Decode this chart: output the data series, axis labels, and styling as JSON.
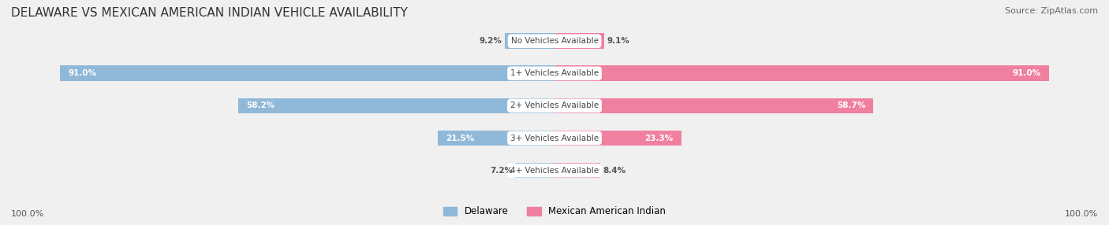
{
  "title": "DELAWARE VS MEXICAN AMERICAN INDIAN VEHICLE AVAILABILITY",
  "source": "Source: ZipAtlas.com",
  "categories": [
    "No Vehicles Available",
    "1+ Vehicles Available",
    "2+ Vehicles Available",
    "3+ Vehicles Available",
    "4+ Vehicles Available"
  ],
  "delaware_values": [
    9.2,
    91.0,
    58.2,
    21.5,
    7.2
  ],
  "mexican_values": [
    9.1,
    91.0,
    58.7,
    23.3,
    8.4
  ],
  "delaware_color": "#90b8d8",
  "mexican_color": "#f080a0",
  "delaware_light": "#b8d4e8",
  "mexican_light": "#f8c0d0",
  "background_color": "#f0f0f0",
  "bar_bg_color": "#e8e8e8",
  "max_value": 100.0,
  "bar_height": 0.55,
  "legend_labels": [
    "Delaware",
    "Mexican American Indian"
  ]
}
